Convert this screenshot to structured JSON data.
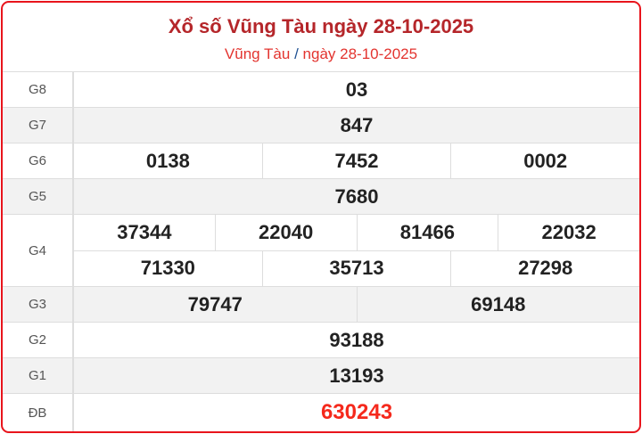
{
  "header": {
    "title": "Xổ số Vũng Tàu ngày 28-10-2025",
    "breadcrumb_province": "Vũng Tàu",
    "breadcrumb_sep": "/",
    "breadcrumb_date": "ngày 28-10-2025"
  },
  "prizes": [
    {
      "label": "G8",
      "lines": [
        [
          "03"
        ]
      ]
    },
    {
      "label": "G7",
      "lines": [
        [
          "847"
        ]
      ]
    },
    {
      "label": "G6",
      "lines": [
        [
          "0138",
          "7452",
          "0002"
        ]
      ]
    },
    {
      "label": "G5",
      "lines": [
        [
          "7680"
        ]
      ]
    },
    {
      "label": "G4",
      "lines": [
        [
          "37344",
          "22040",
          "81466",
          "22032"
        ],
        [
          "71330",
          "35713",
          "27298"
        ]
      ]
    },
    {
      "label": "G3",
      "lines": [
        [
          "79747",
          "69148"
        ]
      ]
    },
    {
      "label": "G2",
      "lines": [
        [
          "93188"
        ]
      ]
    },
    {
      "label": "G1",
      "lines": [
        [
          "13193"
        ]
      ]
    },
    {
      "label": "ĐB",
      "lines": [
        [
          "630243"
        ]
      ]
    }
  ],
  "colors": {
    "border": "#e8141c",
    "title": "#b5262a",
    "special": "#f5291c"
  }
}
